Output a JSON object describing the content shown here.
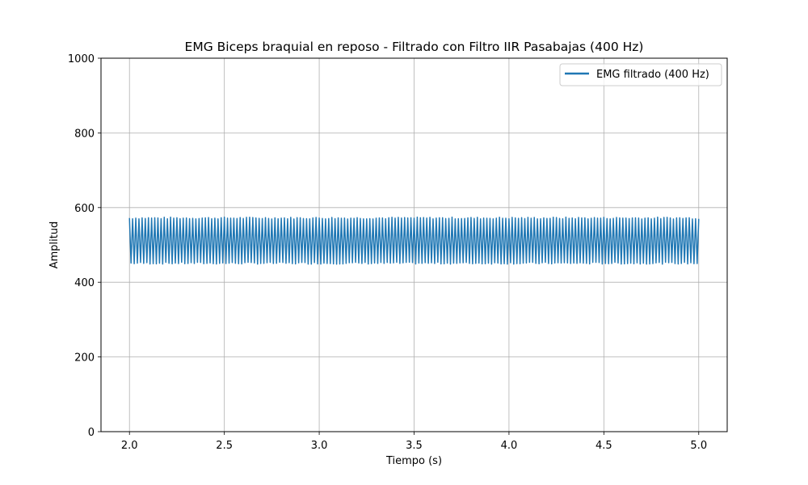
{
  "chart_data": {
    "type": "line",
    "title": "EMG Biceps braquial en reposo - Filtrado con Filtro IIR Pasabajas (400 Hz)",
    "xlabel": "Tiempo (s)",
    "ylabel": "Amplitud",
    "xlim": [
      1.85,
      5.15
    ],
    "ylim": [
      0,
      1000
    ],
    "x_ticks": [
      2.0,
      2.5,
      3.0,
      3.5,
      4.0,
      4.5,
      5.0
    ],
    "x_tick_labels": [
      "2.0",
      "2.5",
      "3.0",
      "3.5",
      "4.0",
      "4.5",
      "5.0"
    ],
    "y_ticks": [
      0,
      200,
      400,
      600,
      800,
      1000
    ],
    "y_tick_labels": [
      "0",
      "200",
      "400",
      "600",
      "800",
      "1000"
    ],
    "grid": true,
    "legend": {
      "position": "top-right"
    },
    "series": [
      {
        "name": "EMG filtrado (400 Hz)",
        "color": "#1f77b4",
        "x_start": 2.0,
        "x_end": 5.0,
        "envelope_upper": 575,
        "envelope_lower": 448,
        "center": 511,
        "cycles_approx": 180
      }
    ]
  }
}
